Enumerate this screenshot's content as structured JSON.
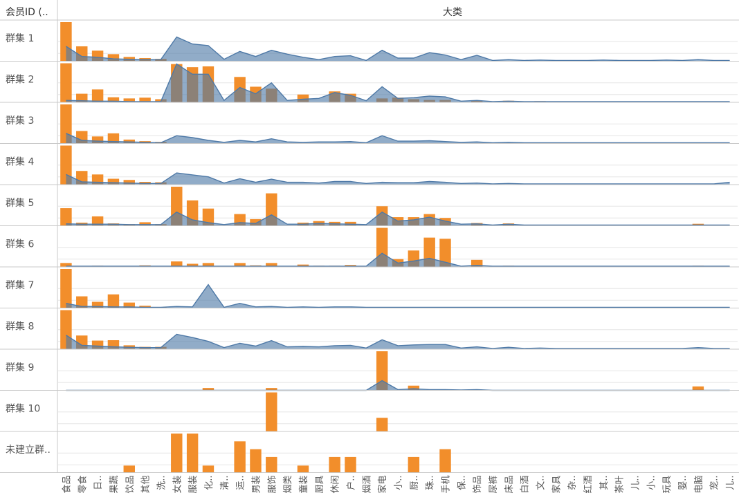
{
  "header": {
    "row_header": "会员ID (..",
    "column_header": "大类"
  },
  "colors": {
    "bar": "#f28e2b",
    "area_fill": "#4e79a7",
    "area_stroke": "#4e79a7",
    "grid": "#e6e6e6",
    "divider": "#c8c8c8",
    "label": "#555555"
  },
  "chart_data": {
    "type": "bar",
    "subtype": "small-multiples bar + area overlay",
    "title": "",
    "xlabel": "大类",
    "ylabel": "",
    "categories": [
      "食品",
      "零食",
      "日..",
      "果蔬",
      "饮品",
      "其他",
      "洗..",
      "女装",
      "服装",
      "化..",
      "清..",
      "运..",
      "男装",
      "服饰",
      "烟类",
      "童装",
      "厨具",
      "休闲",
      "户..",
      "烟酒",
      "家电",
      "小..",
      "厨..",
      "珠..",
      "手机",
      "保..",
      "饰品",
      "尿裤",
      "床品",
      "白酒",
      "文..",
      "家具",
      "杂..",
      "红酒",
      "其..",
      "茶叶",
      "儿..",
      "小..",
      "玩具",
      "婴..",
      "电脑",
      "宠..",
      "儿.."
    ],
    "series_names": [],
    "panels": [
      {
        "label": "群集 1",
        "bars": [
          100,
          38,
          27,
          18,
          11,
          8,
          6,
          0,
          0,
          0,
          0,
          0,
          0,
          0,
          0,
          0,
          0,
          0,
          0,
          0,
          0,
          0,
          0,
          0,
          0,
          0,
          0,
          0,
          0,
          0,
          0,
          0,
          0,
          0,
          0,
          0,
          0,
          0,
          0,
          0,
          0,
          0,
          0
        ],
        "area": [
          38,
          12,
          10,
          6,
          5,
          4,
          4,
          62,
          44,
          40,
          5,
          25,
          12,
          28,
          18,
          10,
          4,
          12,
          14,
          2,
          28,
          8,
          8,
          22,
          16,
          4,
          15,
          2,
          4,
          2,
          3,
          2,
          2,
          2,
          3,
          2,
          2,
          2,
          3,
          2,
          4,
          2,
          2
        ]
      },
      {
        "label": "群集 2",
        "bars": [
          100,
          22,
          33,
          13,
          10,
          12,
          8,
          98,
          90,
          92,
          0,
          65,
          40,
          35,
          0,
          20,
          0,
          28,
          22,
          0,
          10,
          12,
          8,
          6,
          6,
          0,
          4,
          0,
          4,
          0,
          3,
          0,
          0,
          0,
          0,
          0,
          0,
          0,
          0,
          0,
          0,
          0,
          0
        ],
        "area": [
          5,
          4,
          3,
          3,
          2,
          2,
          2,
          98,
          72,
          72,
          5,
          38,
          22,
          50,
          5,
          8,
          10,
          25,
          18,
          4,
          40,
          10,
          12,
          16,
          14,
          3,
          5,
          2,
          3,
          2,
          2,
          2,
          2,
          2,
          2,
          2,
          2,
          2,
          2,
          2,
          2,
          2,
          2
        ]
      },
      {
        "label": "群集 3",
        "bars": [
          100,
          32,
          18,
          26,
          10,
          6,
          4,
          0,
          0,
          0,
          0,
          0,
          0,
          0,
          0,
          0,
          0,
          0,
          0,
          0,
          0,
          0,
          0,
          0,
          0,
          0,
          0,
          0,
          0,
          0,
          0,
          0,
          0,
          0,
          0,
          0,
          0,
          0,
          0,
          0,
          0,
          0,
          0
        ],
        "area": [
          26,
          8,
          6,
          5,
          4,
          3,
          2,
          20,
          15,
          8,
          3,
          8,
          4,
          12,
          4,
          3,
          4,
          4,
          5,
          2,
          20,
          6,
          6,
          7,
          5,
          3,
          4,
          2,
          3,
          2,
          2,
          2,
          2,
          2,
          2,
          2,
          2,
          2,
          2,
          2,
          2,
          2,
          2
        ]
      },
      {
        "label": "群集 4",
        "bars": [
          100,
          35,
          26,
          15,
          12,
          7,
          6,
          0,
          0,
          0,
          0,
          0,
          0,
          0,
          0,
          0,
          0,
          0,
          0,
          0,
          0,
          0,
          0,
          0,
          0,
          0,
          0,
          0,
          0,
          0,
          0,
          0,
          0,
          0,
          0,
          0,
          0,
          0,
          0,
          0,
          0,
          0,
          0
        ],
        "area": [
          26,
          7,
          6,
          5,
          4,
          3,
          3,
          30,
          25,
          20,
          4,
          15,
          6,
          14,
          6,
          6,
          4,
          8,
          8,
          3,
          6,
          5,
          5,
          8,
          6,
          3,
          4,
          2,
          3,
          2,
          2,
          2,
          2,
          2,
          2,
          2,
          2,
          2,
          2,
          2,
          2,
          2,
          6
        ]
      },
      {
        "label": "群集 5",
        "bars": [
          45,
          8,
          24,
          6,
          4,
          9,
          4,
          100,
          65,
          44,
          0,
          30,
          17,
          83,
          0,
          8,
          12,
          10,
          10,
          0,
          50,
          22,
          22,
          30,
          20,
          0,
          7,
          0,
          6,
          0,
          0,
          0,
          0,
          0,
          0,
          0,
          0,
          0,
          0,
          0,
          5,
          0,
          0
        ],
        "area": [
          5,
          4,
          4,
          4,
          3,
          3,
          3,
          35,
          15,
          8,
          3,
          8,
          6,
          28,
          4,
          4,
          6,
          5,
          4,
          3,
          35,
          12,
          15,
          22,
          12,
          4,
          5,
          2,
          4,
          2,
          2,
          2,
          2,
          2,
          2,
          2,
          2,
          2,
          2,
          2,
          2,
          2,
          2
        ]
      },
      {
        "label": "群集 6",
        "bars": [
          10,
          0,
          3,
          0,
          0,
          4,
          0,
          14,
          8,
          10,
          0,
          10,
          4,
          10,
          0,
          6,
          3,
          3,
          5,
          0,
          100,
          20,
          42,
          75,
          72,
          0,
          18,
          0,
          3,
          0,
          0,
          0,
          0,
          0,
          0,
          0,
          0,
          0,
          0,
          0,
          3,
          0,
          0
        ],
        "area": [
          2,
          2,
          2,
          2,
          2,
          2,
          2,
          2,
          2,
          2,
          2,
          2,
          2,
          2,
          2,
          2,
          2,
          2,
          2,
          2,
          35,
          10,
          15,
          22,
          12,
          2,
          4,
          2,
          2,
          2,
          2,
          2,
          2,
          2,
          2,
          2,
          2,
          2,
          2,
          2,
          2,
          2,
          2
        ]
      },
      {
        "label": "群集 7",
        "bars": [
          100,
          30,
          16,
          35,
          14,
          6,
          2,
          0,
          0,
          0,
          0,
          0,
          0,
          0,
          0,
          0,
          0,
          0,
          0,
          0,
          0,
          0,
          0,
          0,
          0,
          0,
          0,
          0,
          0,
          0,
          0,
          0,
          0,
          0,
          0,
          0,
          0,
          0,
          0,
          0,
          0,
          0,
          0
        ],
        "area": [
          12,
          4,
          4,
          3,
          3,
          2,
          2,
          4,
          3,
          60,
          2,
          12,
          3,
          4,
          2,
          3,
          2,
          3,
          3,
          2,
          2,
          2,
          2,
          2,
          2,
          2,
          2,
          2,
          2,
          2,
          2,
          2,
          2,
          2,
          2,
          2,
          2,
          2,
          2,
          2,
          2,
          2,
          2
        ]
      },
      {
        "label": "群集 8",
        "bars": [
          100,
          35,
          22,
          23,
          10,
          6,
          6,
          0,
          0,
          0,
          0,
          0,
          0,
          0,
          0,
          0,
          0,
          0,
          0,
          0,
          0,
          0,
          0,
          0,
          0,
          0,
          0,
          0,
          0,
          0,
          0,
          0,
          0,
          0,
          0,
          0,
          0,
          0,
          0,
          0,
          0,
          0,
          0
        ],
        "area": [
          36,
          10,
          8,
          6,
          5,
          4,
          4,
          38,
          30,
          20,
          4,
          15,
          8,
          22,
          6,
          7,
          6,
          9,
          10,
          3,
          24,
          9,
          11,
          12,
          12,
          3,
          6,
          2,
          5,
          2,
          3,
          2,
          2,
          2,
          2,
          2,
          2,
          2,
          2,
          2,
          4,
          2,
          2
        ]
      },
      {
        "label": "群集 9",
        "bars": [
          0,
          0,
          0,
          0,
          0,
          0,
          0,
          0,
          0,
          6,
          0,
          0,
          0,
          6,
          0,
          0,
          0,
          0,
          0,
          0,
          100,
          0,
          12,
          0,
          0,
          0,
          0,
          0,
          0,
          0,
          0,
          0,
          0,
          0,
          0,
          0,
          0,
          0,
          0,
          0,
          10,
          0,
          0
        ],
        "area": [
          0,
          0,
          0,
          0,
          0,
          0,
          0,
          0,
          0,
          0,
          0,
          0,
          0,
          0,
          0,
          0,
          0,
          0,
          0,
          0,
          25,
          2,
          4,
          2,
          2,
          1,
          2,
          0,
          0,
          0,
          0,
          0,
          0,
          0,
          0,
          0,
          0,
          0,
          0,
          0,
          0,
          0,
          0
        ]
      },
      {
        "label": "群集 10",
        "bars": [
          0,
          0,
          0,
          0,
          0,
          0,
          0,
          0,
          0,
          0,
          0,
          0,
          0,
          100,
          0,
          0,
          0,
          0,
          0,
          0,
          35,
          0,
          0,
          0,
          0,
          0,
          0,
          0,
          0,
          0,
          0,
          0,
          0,
          0,
          0,
          0,
          0,
          0,
          0,
          0,
          0,
          0,
          0
        ],
        "area": [
          0,
          0,
          0,
          0,
          0,
          0,
          0,
          0,
          0,
          0,
          0,
          0,
          0,
          0,
          0,
          0,
          0,
          0,
          0,
          0,
          0,
          0,
          0,
          0,
          0,
          0,
          0,
          0,
          0,
          0,
          0,
          0,
          0,
          0,
          0,
          0,
          0,
          0,
          0,
          0,
          0,
          0,
          0
        ]
      },
      {
        "label": "未建立群..",
        "bars": [
          0,
          0,
          0,
          0,
          18,
          0,
          0,
          100,
          100,
          18,
          0,
          80,
          60,
          40,
          0,
          18,
          0,
          40,
          40,
          0,
          0,
          0,
          40,
          0,
          60,
          0,
          0,
          0,
          0,
          0,
          0,
          0,
          0,
          0,
          0,
          0,
          0,
          0,
          0,
          0,
          0,
          0,
          0
        ],
        "area": [
          0,
          0,
          0,
          0,
          0,
          0,
          0,
          0,
          0,
          0,
          0,
          0,
          0,
          0,
          0,
          0,
          0,
          0,
          0,
          0,
          0,
          0,
          0,
          0,
          0,
          0,
          0,
          0,
          0,
          0,
          0,
          0,
          0,
          0,
          0,
          0,
          0,
          0,
          0,
          0,
          0,
          0,
          0
        ]
      }
    ],
    "ylim": [
      0,
      100
    ],
    "grid": true,
    "legend": "none"
  }
}
